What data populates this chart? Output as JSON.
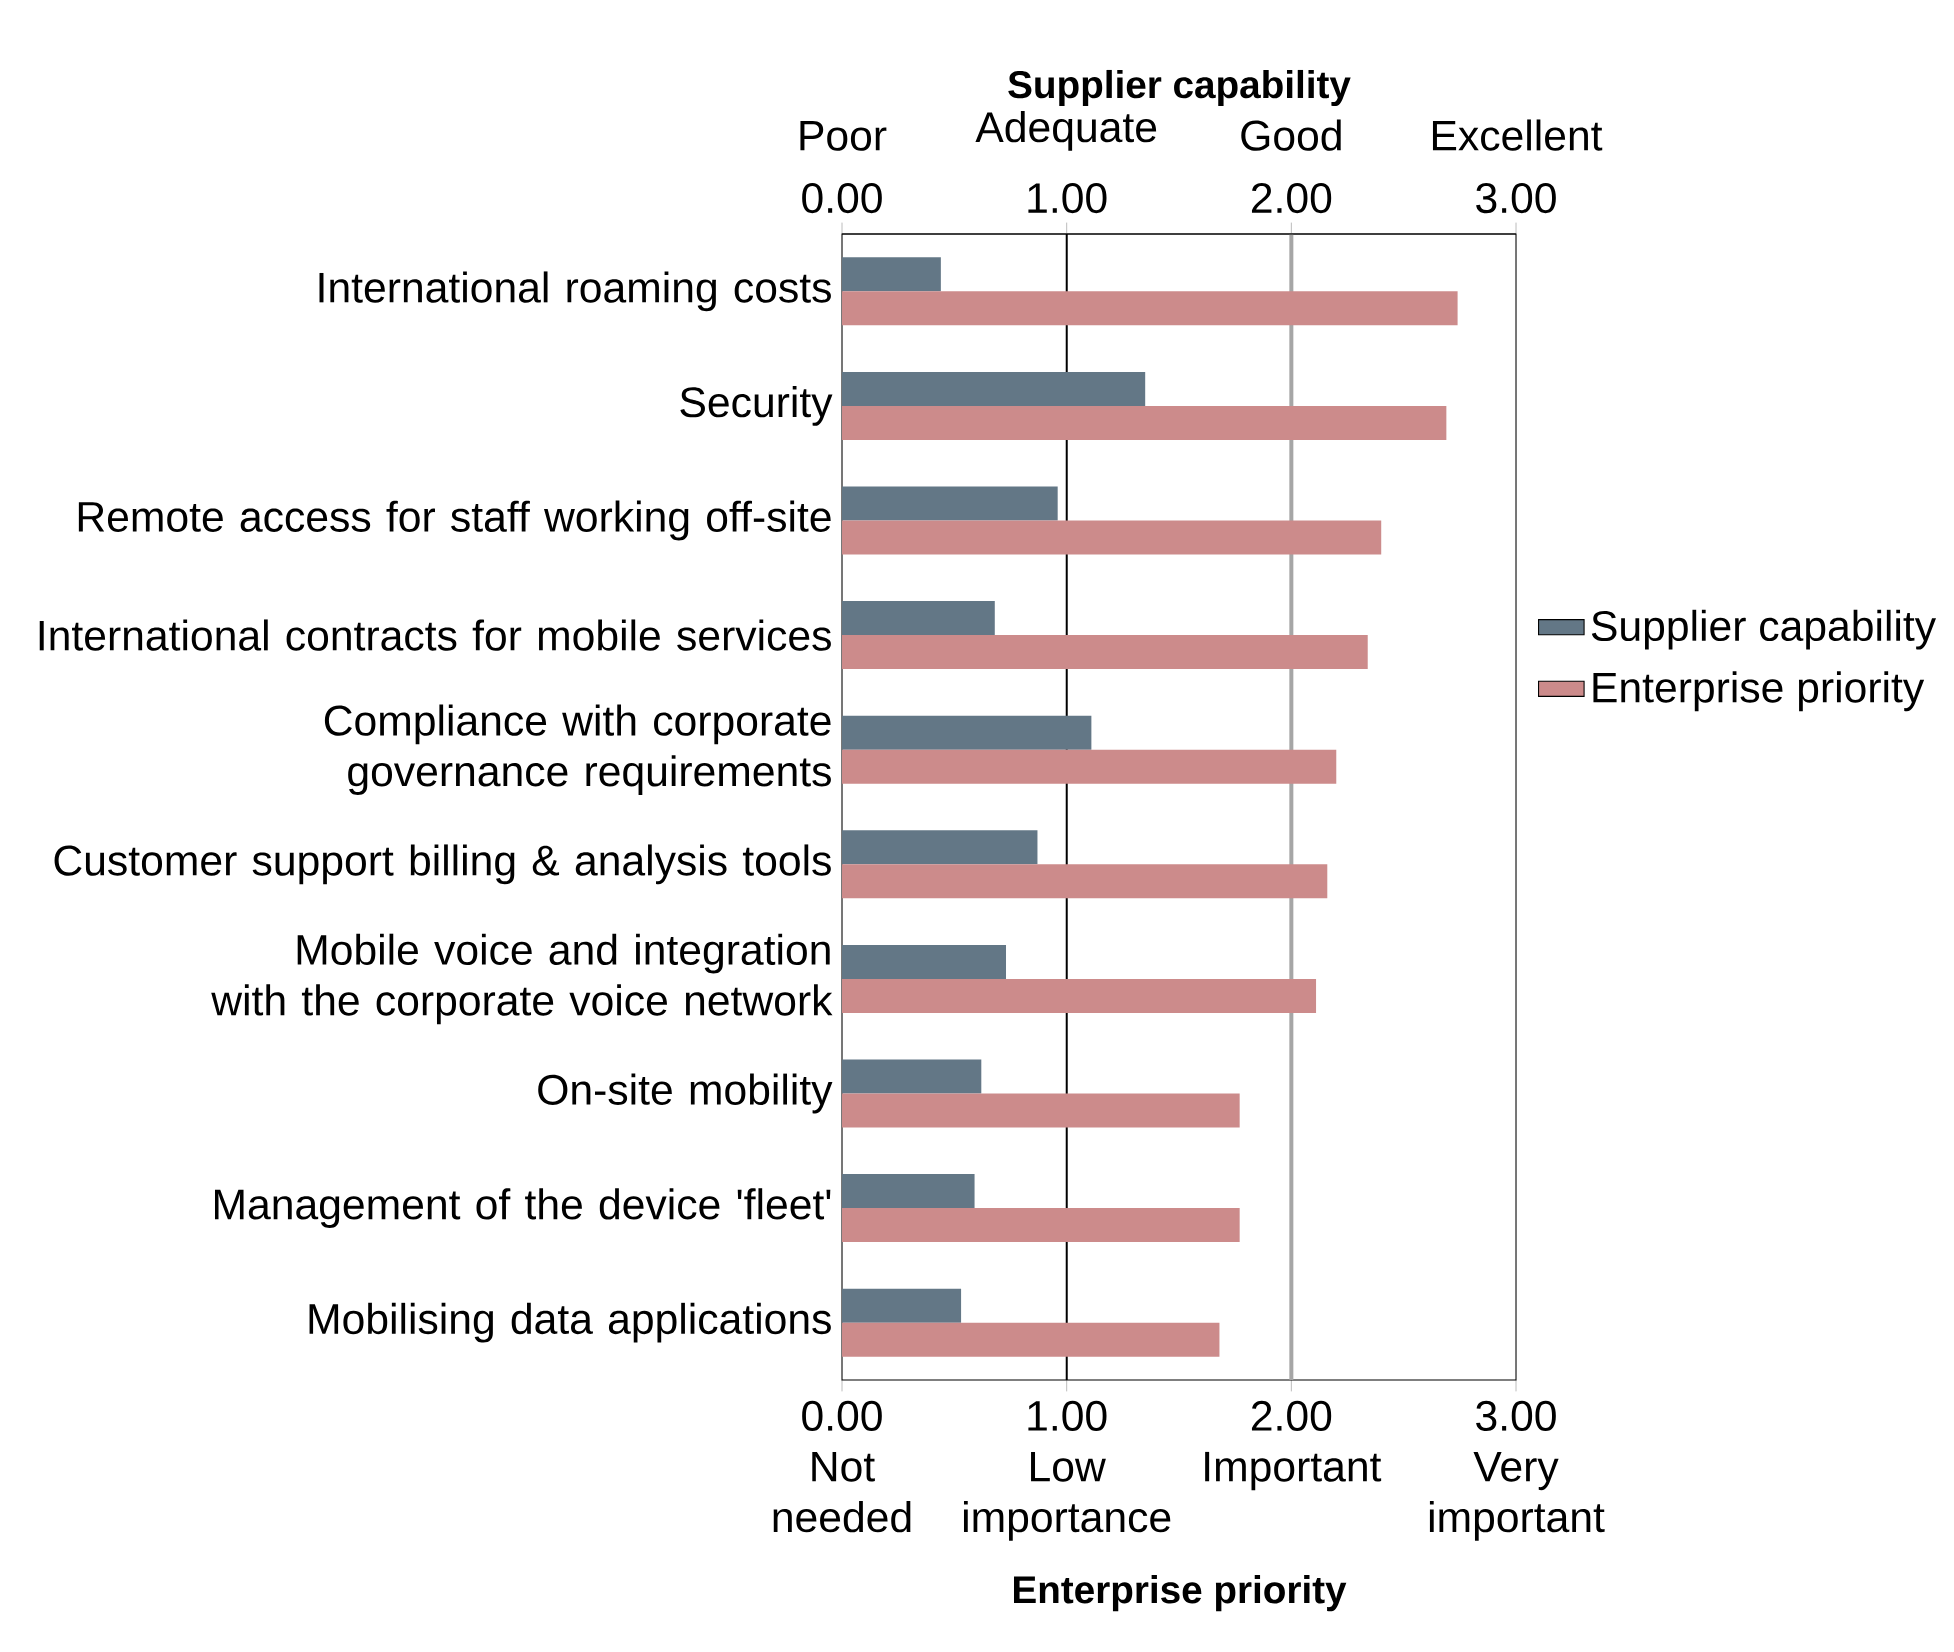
{
  "chart_data": {
    "type": "bar",
    "orientation": "horizontal",
    "xlabel": "Enterprise priority",
    "x2label": "Supplier capability",
    "categories": [
      "International roaming costs",
      "Security",
      "Remote access for staff working off-site",
      "International contracts for mobile services",
      "Compliance with corporate governance requirements",
      "Customer support billing & analysis tools",
      "Mobile voice and integration with the corporate voice network",
      "On-site mobility",
      "Management of the device 'fleet'",
      "Mobilising data applications"
    ],
    "series": [
      {
        "name": "Supplier capability",
        "color": "#637786",
        "values": [
          0.44,
          1.35,
          0.96,
          0.68,
          1.11,
          0.87,
          0.73,
          0.62,
          0.59,
          0.53
        ]
      },
      {
        "name": "Enterprise priority",
        "color": "#cc8b8b",
        "values": [
          2.74,
          2.69,
          2.4,
          2.34,
          2.2,
          2.16,
          2.11,
          1.77,
          1.77,
          1.68
        ]
      }
    ],
    "xlim": [
      0,
      3
    ],
    "xticks": [
      {
        "value": 0,
        "label": "0.00 Not needed"
      },
      {
        "value": 1,
        "label": "1.00 Low importance"
      },
      {
        "value": 2,
        "label": "2.00 Important"
      },
      {
        "value": 3,
        "label": "3.00 Very important"
      }
    ],
    "x2lim": [
      0,
      3
    ],
    "x2ticks": [
      {
        "value": 0,
        "label": "0.00"
      },
      {
        "value": 1,
        "label": "1.00"
      },
      {
        "value": 2,
        "label": "2.00"
      },
      {
        "value": 3,
        "label": "3.00"
      }
    ],
    "annotations": [
      "Poor",
      "Adequate",
      "Good",
      "Excellent"
    ],
    "ref_lines": [
      {
        "axis": "x",
        "value": 1,
        "color": "#000000"
      },
      {
        "axis": "x",
        "value": 2,
        "color": "#a6a6a6"
      }
    ],
    "legend": "right"
  }
}
